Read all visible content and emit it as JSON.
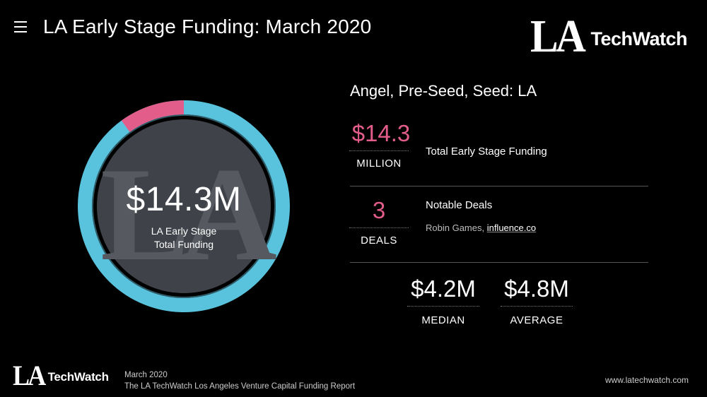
{
  "header": {
    "title": "LA Early Stage Funding: March 2020",
    "brand_la": "LA",
    "brand_techwatch": "TechWatch"
  },
  "donut": {
    "value": "$14.3M",
    "label_line1": "LA Early Stage",
    "label_line2": "Total Funding",
    "watermark": "LA",
    "highlight_fraction": 0.1,
    "ring_color": "#59c3de",
    "highlight_color": "#e35d8b",
    "inner_color": "#3f4248"
  },
  "section": {
    "title": "Angel, Pre-Seed, Seed: LA"
  },
  "funding": {
    "amount": "$14.3",
    "unit": "MILLION",
    "description": "Total Early Stage Funding"
  },
  "deals": {
    "count": "3",
    "unit": "DEALS",
    "description": "Notable Deals",
    "names_prefix": "Robin Games, ",
    "link": "influence.co"
  },
  "median": {
    "value": "$4.2M",
    "label": "MEDIAN"
  },
  "average": {
    "value": "$4.8M",
    "label": "AVERAGE"
  },
  "footer": {
    "brand_la": "LA",
    "brand_techwatch": "TechWatch",
    "date": "March 2020",
    "report": "The LA TechWatch Los Angeles Venture Capital Funding Report",
    "url": "www.latechwatch.com"
  },
  "colors": {
    "accent_pink": "#e35d8b",
    "accent_blue": "#59c3de"
  }
}
